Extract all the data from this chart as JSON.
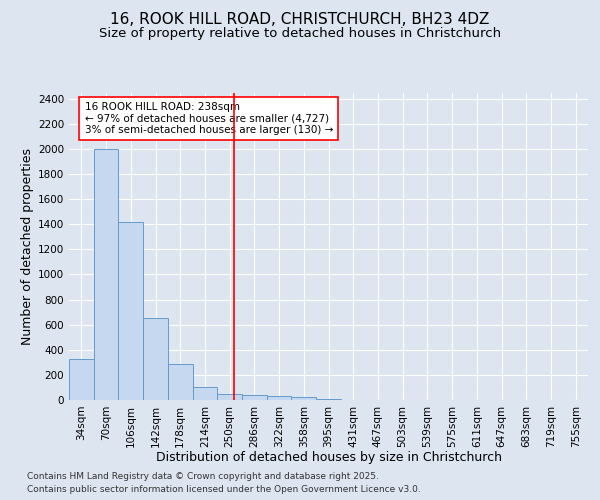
{
  "title_line1": "16, ROOK HILL ROAD, CHRISTCHURCH, BH23 4DZ",
  "title_line2": "Size of property relative to detached houses in Christchurch",
  "xlabel": "Distribution of detached houses by size in Christchurch",
  "ylabel": "Number of detached properties",
  "categories": [
    "34sqm",
    "70sqm",
    "106sqm",
    "142sqm",
    "178sqm",
    "214sqm",
    "250sqm",
    "286sqm",
    "322sqm",
    "358sqm",
    "395sqm",
    "431sqm",
    "467sqm",
    "503sqm",
    "539sqm",
    "575sqm",
    "611sqm",
    "647sqm",
    "683sqm",
    "719sqm",
    "755sqm"
  ],
  "values": [
    325,
    2000,
    1420,
    650,
    285,
    105,
    50,
    40,
    35,
    20,
    5,
    3,
    2,
    1,
    1,
    0,
    0,
    0,
    0,
    0,
    0
  ],
  "bar_color": "#c5d8f0",
  "bar_edge_color": "#6699cc",
  "vline_x": 6.17,
  "vline_color": "red",
  "annotation_text": "16 ROOK HILL ROAD: 238sqm\n← 97% of detached houses are smaller (4,727)\n3% of semi-detached houses are larger (130) →",
  "annotation_box_color": "white",
  "annotation_box_edge": "red",
  "ylim": [
    0,
    2450
  ],
  "yticks": [
    0,
    200,
    400,
    600,
    800,
    1000,
    1200,
    1400,
    1600,
    1800,
    2000,
    2200,
    2400
  ],
  "bg_color": "#dde5f0",
  "plot_bg_color": "#dde5f0",
  "grid_color": "white",
  "footer_line1": "Contains HM Land Registry data © Crown copyright and database right 2025.",
  "footer_line2": "Contains public sector information licensed under the Open Government Licence v3.0.",
  "title_fontsize": 11,
  "subtitle_fontsize": 9.5,
  "tick_fontsize": 7.5,
  "xlabel_fontsize": 9,
  "ylabel_fontsize": 9,
  "annotation_fontsize": 7.5,
  "footer_fontsize": 6.5
}
